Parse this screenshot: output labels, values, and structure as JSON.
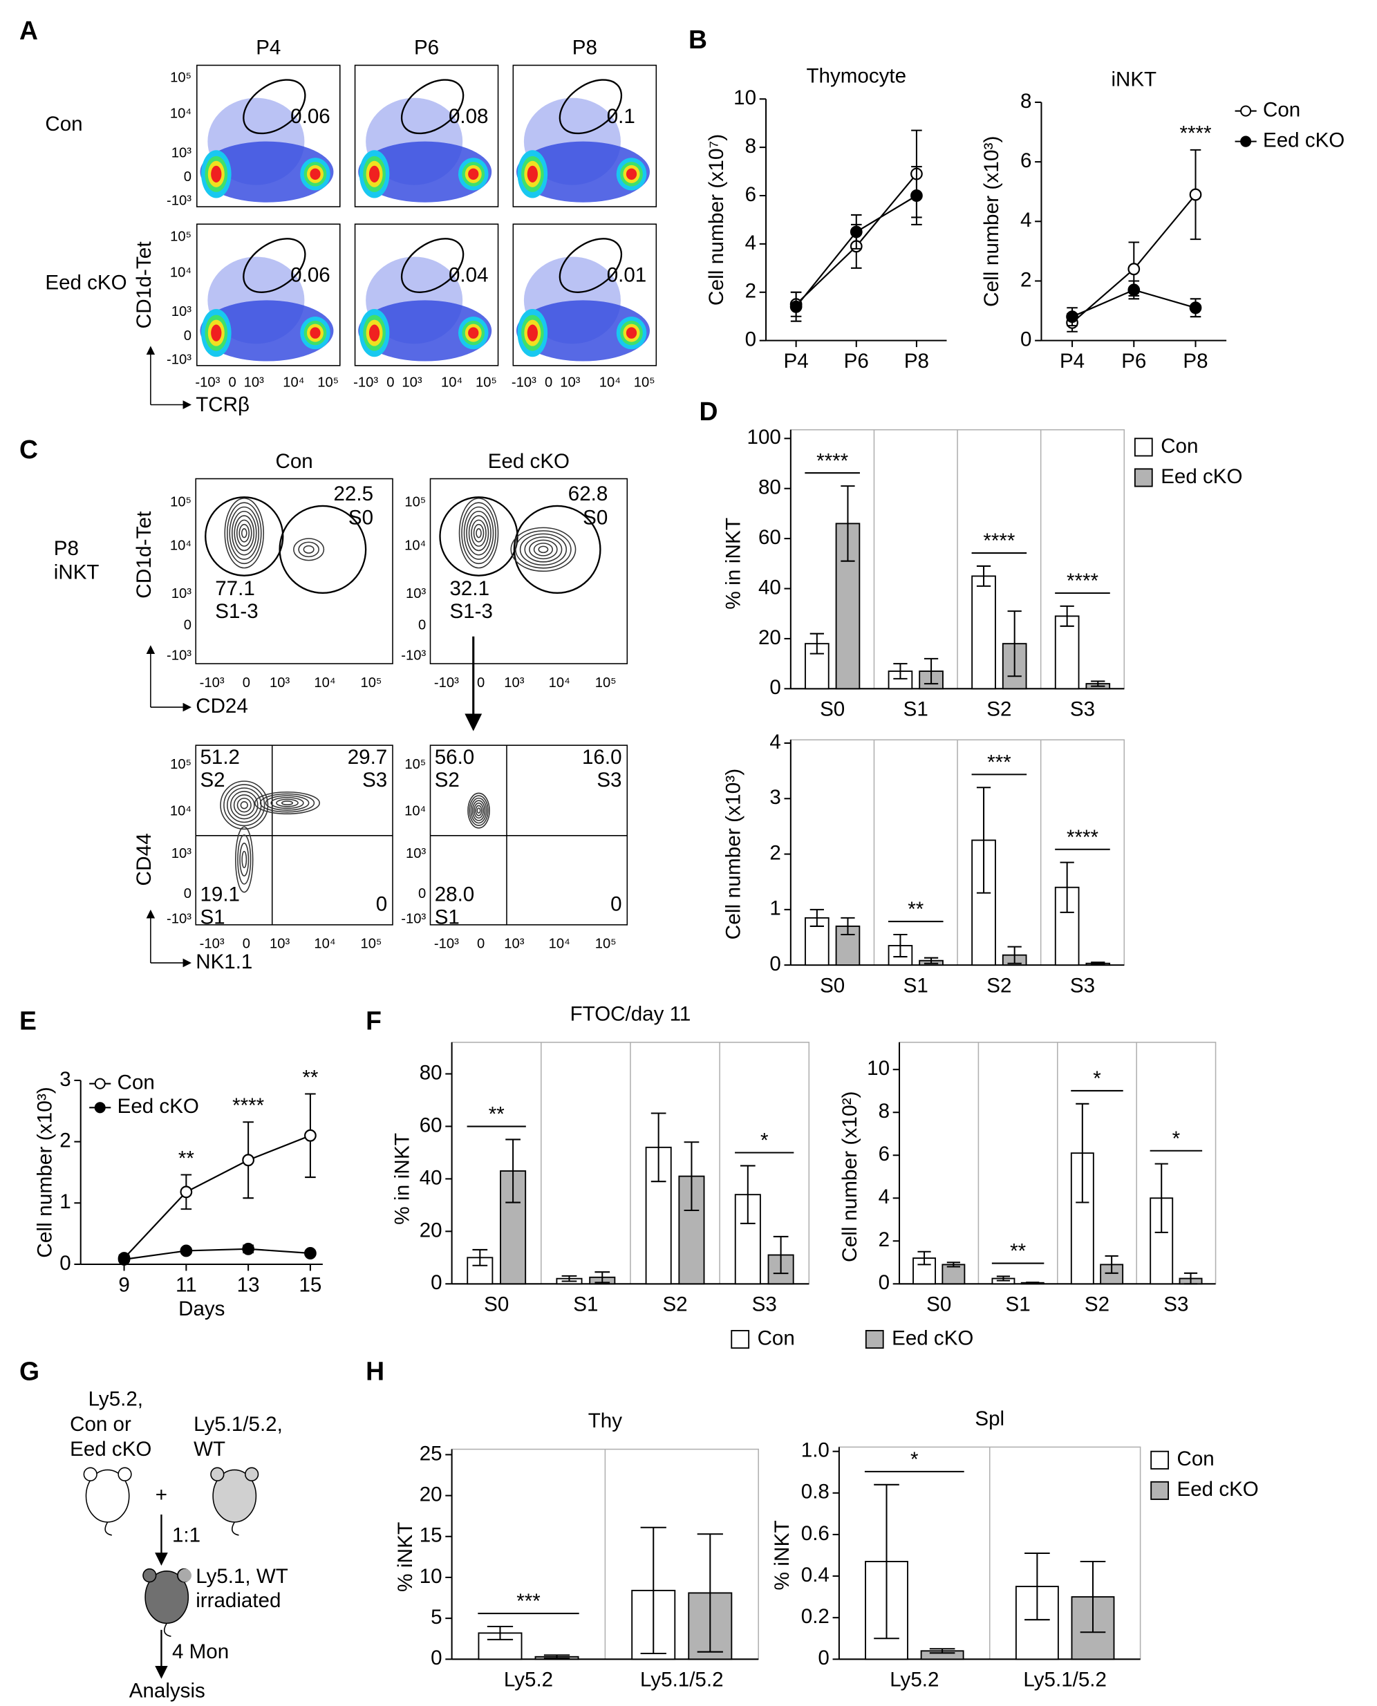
{
  "panel_letters": [
    "A",
    "B",
    "C",
    "D",
    "E",
    "F",
    "G",
    "H"
  ],
  "flow_A": {
    "columns": [
      "P4",
      "P6",
      "P8"
    ],
    "rows": [
      "Con",
      "Eed cKO"
    ],
    "gates": [
      [
        0.06,
        0.08,
        0.1
      ],
      [
        0.06,
        0.04,
        0.01
      ]
    ],
    "y_axis": "CD1d-Tet",
    "x_axis": "TCRβ",
    "yticks": [
      "10⁵",
      "10⁴",
      "10³",
      "0",
      "-10³"
    ],
    "xticks": [
      "-10³",
      "0",
      "10³",
      "10⁴",
      "10⁵"
    ]
  },
  "flow_C": {
    "columns": [
      "Con",
      "Eed cKO"
    ],
    "sample": [
      "P8",
      "iNKT"
    ],
    "top_gates": [
      [
        {
          "value": 22.5,
          "label": "S0"
        },
        {
          "value": 77.1,
          "label": "S1-3"
        }
      ],
      [
        {
          "value": 62.8,
          "label": "S0"
        },
        {
          "value": 32.1,
          "label": "S1-3"
        }
      ]
    ],
    "bottom_quadrants": [
      [
        {
          "value": 51.2,
          "label": "S2"
        },
        {
          "value": 29.7,
          "label": "S3"
        },
        {
          "value": 19.1,
          "label": "S1"
        },
        {
          "value": 0
        }
      ],
      [
        {
          "value": "56.0",
          "label": "S2"
        },
        {
          "value": "16.0",
          "label": "S3"
        },
        {
          "value": "28.0",
          "label": "S1"
        },
        {
          "value": 0
        }
      ]
    ],
    "top_axes": {
      "y": "CD1d-Tet",
      "x": "CD24"
    },
    "bottom_axes": {
      "y": "CD44",
      "x": "NK1.1"
    },
    "yticks": [
      "10⁵",
      "10⁴",
      "10³",
      "0",
      "-10³"
    ],
    "xticks": [
      "-10³",
      "0",
      "10³",
      "10⁴",
      "10⁵"
    ]
  },
  "diagram_G": {
    "donor1": [
      "Ly5.2,",
      "Con or",
      "Eed cKO"
    ],
    "donor2": [
      "Ly5.1/5.2,",
      "WT"
    ],
    "plus": "+",
    "ratio": "1:1",
    "recipient": [
      "Ly5.1, WT",
      "irradiated"
    ],
    "time": "4 Mon",
    "result": "Analysis"
  },
  "chart_data": [
    {
      "type": "line",
      "title": "Thymocyte",
      "y_label": "Cell number (x10⁷)",
      "categories": [
        "P4",
        "P6",
        "P8"
      ],
      "ylim": [
        0,
        10
      ],
      "yticks": [
        0,
        2,
        4,
        6,
        8,
        10
      ],
      "series": [
        {
          "name": "Con",
          "color": "#ffffff",
          "values": [
            1.5,
            3.9,
            6.9
          ],
          "errors": [
            0.5,
            0.9,
            1.8
          ]
        },
        {
          "name": "Eed cKO",
          "color": "#000000",
          "values": [
            1.4,
            4.5,
            6.0
          ],
          "errors": [
            0.6,
            0.7,
            1.2
          ]
        }
      ]
    },
    {
      "type": "line",
      "title": "iNKT",
      "y_label": "Cell number (x10³)",
      "categories": [
        "P4",
        "P6",
        "P8"
      ],
      "ylim": [
        0,
        8
      ],
      "yticks": [
        0,
        2,
        4,
        6,
        8
      ],
      "legend": "right",
      "series": [
        {
          "name": "Con",
          "color": "#ffffff",
          "values": [
            0.6,
            2.4,
            4.9
          ],
          "errors": [
            0.3,
            0.9,
            1.5
          ]
        },
        {
          "name": "Eed cKO",
          "color": "#000000",
          "values": [
            0.8,
            1.7,
            1.1
          ],
          "errors": [
            0.3,
            0.3,
            0.3
          ]
        }
      ],
      "annotations": [
        {
          "text": "****",
          "x": "P8"
        }
      ]
    },
    {
      "type": "bar",
      "y_label": "% in iNKT",
      "categories": [
        "S0",
        "S1",
        "S2",
        "S3"
      ],
      "ylim": [
        0,
        100
      ],
      "yticks": [
        0,
        20,
        40,
        60,
        80,
        100
      ],
      "legend": "right",
      "series": [
        {
          "name": "Con",
          "color": "#ffffff",
          "values": [
            18,
            7,
            45,
            29
          ],
          "errors": [
            4,
            3,
            4,
            4
          ]
        },
        {
          "name": "Eed cKO",
          "color": "#b3b3b3",
          "values": [
            66,
            7,
            18,
            2
          ],
          "errors": [
            15,
            5,
            13,
            1
          ]
        }
      ],
      "annotations": [
        {
          "text": "****",
          "x": "S0"
        },
        {
          "text": "****",
          "x": "S2"
        },
        {
          "text": "****",
          "x": "S3"
        }
      ]
    },
    {
      "type": "bar",
      "y_label": "Cell number (x10³)",
      "categories": [
        "S0",
        "S1",
        "S2",
        "S3"
      ],
      "ylim": [
        0,
        4
      ],
      "yticks": [
        0,
        1,
        2,
        3,
        4
      ],
      "series": [
        {
          "name": "Con",
          "color": "#ffffff",
          "values": [
            0.85,
            0.35,
            2.25,
            1.4
          ],
          "errors": [
            0.15,
            0.2,
            0.95,
            0.45
          ]
        },
        {
          "name": "Eed cKO",
          "color": "#b3b3b3",
          "values": [
            0.7,
            0.08,
            0.18,
            0.03
          ],
          "errors": [
            0.15,
            0.05,
            0.15,
            0.02
          ]
        }
      ],
      "annotations": [
        {
          "text": "**",
          "x": "S1"
        },
        {
          "text": "***",
          "x": "S2"
        },
        {
          "text": "****",
          "x": "S3"
        }
      ]
    },
    {
      "type": "line",
      "y_label": "Cell number (x10³)",
      "x_label": "Days",
      "x": [
        9,
        11,
        13,
        15
      ],
      "xlim": [
        7.6,
        15.4
      ],
      "xticks": [
        9,
        11,
        13,
        15
      ],
      "ylim": [
        0,
        3
      ],
      "yticks": [
        0,
        1,
        2,
        3
      ],
      "legend": "upper left",
      "series": [
        {
          "name": "Con",
          "color": "#ffffff",
          "values": [
            0.1,
            1.18,
            1.7,
            2.1
          ],
          "errors": [
            0.05,
            0.28,
            0.62,
            0.68
          ]
        },
        {
          "name": "Eed cKO",
          "color": "#000000",
          "values": [
            0.08,
            0.22,
            0.25,
            0.18
          ],
          "errors": [
            0.03,
            0.04,
            0.06,
            0.03
          ]
        }
      ],
      "annotations": [
        {
          "text": "**",
          "x": 11
        },
        {
          "text": "****",
          "x": 13
        },
        {
          "text": "**",
          "x": 15
        }
      ]
    },
    {
      "type": "bar",
      "title": "FTOC/day 11",
      "y_label": "% in iNKT",
      "categories": [
        "S0",
        "S1",
        "S2",
        "S3"
      ],
      "ylim": [
        0,
        80
      ],
      "yticks": [
        0,
        20,
        40,
        60,
        80
      ],
      "series": [
        {
          "name": "Con",
          "color": "#ffffff",
          "values": [
            10,
            2,
            52,
            34
          ],
          "errors": [
            3,
            1,
            13,
            11
          ]
        },
        {
          "name": "Eed cKO",
          "color": "#b3b3b3",
          "values": [
            43,
            2.5,
            41,
            11
          ],
          "errors": [
            12,
            2,
            13,
            7
          ]
        }
      ],
      "annotations": [
        {
          "text": "**",
          "x": "S0"
        },
        {
          "text": "*",
          "x": "S3"
        }
      ]
    },
    {
      "type": "bar",
      "y_label": "Cell number (x10²)",
      "categories": [
        "S0",
        "S1",
        "S2",
        "S3"
      ],
      "ylim": [
        0,
        10
      ],
      "yticks": [
        0,
        2,
        4,
        6,
        8,
        10
      ],
      "legend": "bottom",
      "series": [
        {
          "name": "Con",
          "color": "#ffffff",
          "values": [
            1.2,
            0.25,
            6.1,
            4.0
          ],
          "errors": [
            0.3,
            0.1,
            2.3,
            1.6
          ]
        },
        {
          "name": "Eed cKO",
          "color": "#b3b3b3",
          "values": [
            0.9,
            0.05,
            0.9,
            0.25
          ],
          "errors": [
            0.1,
            0.02,
            0.4,
            0.25
          ]
        }
      ],
      "annotations": [
        {
          "text": "**",
          "x": "S1"
        },
        {
          "text": "*",
          "x": "S2"
        },
        {
          "text": "*",
          "x": "S3"
        }
      ]
    },
    {
      "type": "bar",
      "title": "Thy",
      "y_label": "% iNKT",
      "categories": [
        "Ly5.2",
        "Ly5.1/5.2"
      ],
      "ylim": [
        0,
        25
      ],
      "yticks": [
        0,
        5,
        10,
        15,
        20,
        25
      ],
      "series": [
        {
          "name": "Con",
          "color": "#ffffff",
          "values": [
            3.2,
            8.4
          ],
          "errors": [
            0.8,
            7.7
          ]
        },
        {
          "name": "Eed cKO",
          "color": "#b3b3b3",
          "values": [
            0.3,
            8.1
          ],
          "errors": [
            0.2,
            7.2
          ]
        }
      ],
      "annotations": [
        {
          "text": "***",
          "x": "Ly5.2"
        }
      ]
    },
    {
      "type": "bar",
      "title": "Spl",
      "y_label": "% iNKT",
      "categories": [
        "Ly5.2",
        "Ly5.1/5.2"
      ],
      "ylim": [
        0,
        1
      ],
      "yticks": [
        0,
        0.2,
        0.4,
        0.6,
        0.8,
        {
          "value": 1,
          "label": "1.0"
        }
      ],
      "legend": "right",
      "series": [
        {
          "name": "Con",
          "color": "#ffffff",
          "values": [
            0.47,
            0.35
          ],
          "errors": [
            0.37,
            0.16
          ]
        },
        {
          "name": "Eed cKO",
          "color": "#b3b3b3",
          "values": [
            0.04,
            0.3
          ],
          "errors": [
            0.01,
            0.17
          ]
        }
      ],
      "annotations": [
        {
          "text": "*",
          "x": "Ly5.2"
        }
      ]
    }
  ]
}
